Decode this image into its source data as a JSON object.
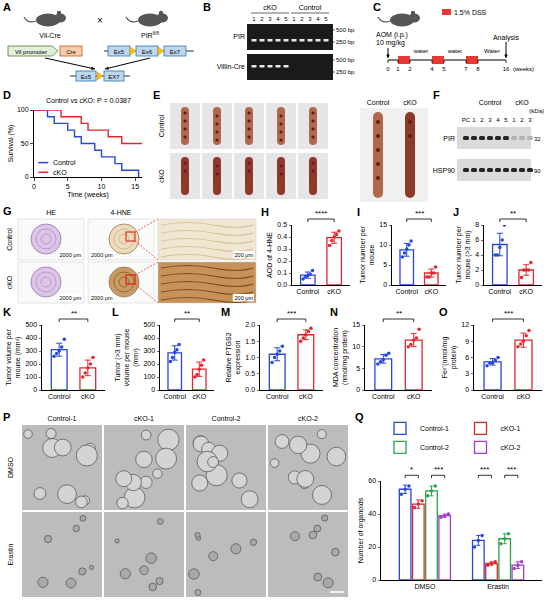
{
  "panels": {
    "A": {
      "label": "A",
      "mouse_left": "Vil-Cre",
      "mouse_right": "PIR",
      "mouse_right_sup": "fl/fl",
      "cross": "×",
      "promoter": "Vil promoter",
      "gene": "Cre",
      "exons": [
        "Ex5",
        "Ex6",
        "Ex7"
      ],
      "result_exons": [
        "Ex5",
        "EX7"
      ]
    },
    "B": {
      "label": "B",
      "groups": [
        {
          "name": "cKO",
          "lanes": [
            "1",
            "2",
            "3",
            "4",
            "5"
          ]
        },
        {
          "name": "Control",
          "lanes": [
            "1",
            "2",
            "3",
            "4",
            "5"
          ]
        }
      ],
      "rows": [
        "PIR",
        "Villin-Cre"
      ],
      "sizes": [
        "500 bp",
        "250 bp"
      ]
    },
    "C": {
      "label": "C",
      "injection": "AOM (i.p.)",
      "dose": "10 mg/kg",
      "treatment": "1.5% DSS",
      "weeks": [
        "0",
        "1",
        "2",
        "4",
        "5",
        "7",
        "8",
        "16"
      ],
      "unit": "(weeks)",
      "phases": [
        "water",
        "water",
        "Water"
      ],
      "end": "Analysis"
    },
    "E": {
      "label": "E",
      "rows": [
        "Control",
        "cKO"
      ],
      "right": [
        "Control",
        "cKO"
      ]
    },
    "F": {
      "label": "F",
      "control_lane": "PC",
      "groups": [
        {
          "name": "Control",
          "lanes": [
            "1",
            "2",
            "3",
            "4",
            "5"
          ]
        },
        {
          "name": "cKO",
          "lanes": [
            "1",
            "2",
            "3"
          ]
        }
      ],
      "rows": [
        "PIR",
        "HSP90"
      ],
      "unit": "(kDa)",
      "sizes": [
        "32",
        "90"
      ]
    },
    "G": {
      "label": "G",
      "columns": [
        "HE",
        "4-HNE"
      ],
      "rows": [
        "Control",
        "cKO"
      ],
      "scale_bars": [
        "2000 μm",
        "2000 μm",
        "200 μm"
      ]
    },
    "P": {
      "label": "P",
      "columns": [
        "Control-1",
        "cKO-1",
        "Control-2",
        "cKO-2"
      ],
      "rows": [
        "DMSO",
        "Erastin"
      ]
    }
  },
  "chart_data": [
    {
      "label": "D",
      "type": "line",
      "line_style": "step",
      "xlabel": "Time (weeks)",
      "ylabel": "Survival (%)",
      "annotation": "Control vs cKO: P = 0.0387",
      "xlim": [
        0,
        16
      ],
      "xticks": [
        0,
        5,
        10,
        15
      ],
      "ylim": [
        0,
        100
      ],
      "yticks": [
        0,
        50,
        100
      ],
      "legend": "bottom left",
      "series": [
        {
          "name": "Control",
          "color": "#2747d9",
          "x": [
            0,
            2,
            3,
            5,
            6,
            7,
            9,
            10,
            12,
            13,
            15.5
          ],
          "values": [
            100,
            90,
            80,
            70,
            60,
            50,
            40,
            30,
            20,
            10,
            0
          ]
        },
        {
          "name": "cKO",
          "color": "#e3262d",
          "x": [
            0,
            4,
            7,
            8,
            11,
            13,
            16
          ],
          "values": [
            100,
            90,
            80,
            70,
            60,
            50,
            50
          ]
        }
      ]
    },
    {
      "label": "H",
      "type": "bar",
      "ylabel": "AOD of 4-HNE",
      "categories": [
        "Control",
        "cKO"
      ],
      "values": [
        0.082,
        0.394
      ],
      "errors": [
        0.026,
        0.046
      ],
      "points": [
        [
          0.05,
          0.07,
          0.08,
          0.09,
          0.12
        ],
        [
          0.33,
          0.37,
          0.4,
          0.42,
          0.45
        ]
      ],
      "colors": [
        "#2747d9",
        "#e3262d"
      ],
      "marker": "circle",
      "ylim": [
        0,
        0.5
      ],
      "yticks": [
        {
          "value": 0,
          "label": "0.0"
        },
        0.1,
        0.2,
        0.3,
        0.4,
        0.5
      ],
      "significance": "****"
    },
    {
      "label": "I",
      "type": "bar",
      "ylabel": "Tumor number per mouse",
      "categories": [
        "Control",
        "cKO"
      ],
      "values": [
        8.8,
        3.0
      ],
      "errors": [
        1.6,
        1.0
      ],
      "points": [
        [
          7,
          8,
          9,
          10,
          11
        ],
        [
          2,
          2,
          3,
          3,
          4.5
        ]
      ],
      "colors": [
        "#2747d9",
        "#e3262d"
      ],
      "marker": "circle",
      "ylim": [
        0,
        15
      ],
      "yticks": [
        0,
        5,
        10,
        15
      ],
      "significance": "***"
    },
    {
      "label": "J",
      "type": "bar",
      "ylabel": "Tumor number per mouse (>3 mm)",
      "categories": [
        "Control",
        "cKO"
      ],
      "values": [
        5.4,
        2.0
      ],
      "errors": [
        1.5,
        0.7
      ],
      "points": [
        [
          4,
          4,
          5,
          6,
          8
        ],
        [
          1,
          2,
          2,
          2,
          3
        ]
      ],
      "colors": [
        "#2747d9",
        "#e3262d"
      ],
      "marker": "circle",
      "ylim": [
        0,
        8
      ],
      "yticks": [
        0,
        2,
        4,
        6,
        8
      ],
      "significance": "**"
    },
    {
      "label": "K",
      "type": "bar",
      "ylabel": "Tumor volume per mouse (mm³)",
      "categories": [
        "Control",
        "cKO"
      ],
      "values": [
        310,
        170
      ],
      "errors": [
        50,
        60
      ],
      "points": [
        [
          260,
          280,
          300,
          330,
          390
        ],
        [
          100,
          130,
          170,
          200,
          250
        ]
      ],
      "colors": [
        "#2747d9",
        "#e3262d"
      ],
      "marker": "circle",
      "ylim": [
        0,
        500
      ],
      "yticks": [
        0,
        100,
        200,
        300,
        400,
        500
      ],
      "significance": "**"
    },
    {
      "label": "L",
      "type": "bar",
      "ylabel": "Tumor (>3 mm) volume per mouse (mm³)",
      "categories": [
        "Control",
        "cKO"
      ],
      "values": [
        285,
        160
      ],
      "errors": [
        55,
        55
      ],
      "points": [
        [
          220,
          250,
          290,
          310,
          350
        ],
        [
          100,
          120,
          160,
          190,
          230
        ]
      ],
      "colors": [
        "#2747d9",
        "#e3262d"
      ],
      "marker": "circle",
      "ylim": [
        0,
        500
      ],
      "yticks": [
        0,
        100,
        200,
        300,
        400,
        500
      ],
      "significance": "**"
    },
    {
      "label": "M",
      "type": "bar",
      "ylabel": "Relative PTGS2 expression",
      "categories": [
        "Control",
        "cKO"
      ],
      "values": [
        1.1,
        1.7
      ],
      "errors": [
        0.2,
        0.15
      ],
      "points": [
        [
          0.85,
          1.0,
          1.1,
          1.2,
          1.35
        ],
        [
          1.5,
          1.6,
          1.7,
          1.8,
          1.9
        ]
      ],
      "colors": [
        "#2747d9",
        "#e3262d"
      ],
      "marker": "circle",
      "ylim": [
        0,
        2.0
      ],
      "yticks": [
        {
          "value": 0,
          "label": "0.0"
        },
        0.5,
        {
          "value": 1,
          "label": "1.0"
        },
        1.5,
        {
          "value": 2,
          "label": "2.0"
        }
      ],
      "significance": "***"
    },
    {
      "label": "N",
      "type": "bar",
      "ylabel": "MDA concentration (nmol/mg protein)",
      "categories": [
        "Control",
        "cKO"
      ],
      "values": [
        7.2,
        11.5
      ],
      "errors": [
        1.0,
        1.5
      ],
      "points": [
        [
          6,
          6.5,
          7,
          8,
          8.5
        ],
        [
          10,
          10.5,
          11.5,
          12,
          14
        ]
      ],
      "colors": [
        "#2747d9",
        "#e3262d"
      ],
      "marker": "circle",
      "ylim": [
        0,
        15
      ],
      "yticks": [
        0,
        5,
        10,
        15
      ],
      "significance": "**"
    },
    {
      "label": "O",
      "type": "bar",
      "ylabel": "Fe²⁺(nmol/mg protein)",
      "categories": [
        "Control",
        "cKO"
      ],
      "values": [
        5.2,
        9.2
      ],
      "errors": [
        0.6,
        1.3
      ],
      "points": [
        [
          4.5,
          5,
          5,
          5.5,
          6
        ],
        [
          8,
          8.5,
          9,
          10,
          11
        ]
      ],
      "colors": [
        "#2747d9",
        "#e3262d"
      ],
      "marker": "circle",
      "ylim": [
        0,
        12
      ],
      "yticks": [
        0,
        3,
        6,
        9,
        12
      ],
      "significance": "***"
    },
    {
      "label": "Q",
      "type": "bar",
      "ylabel": "Number of organoids",
      "categories": [
        "DMSO",
        "Erastin"
      ],
      "marker": "circle",
      "legend": "top",
      "ylim": [
        0,
        60
      ],
      "yticks": [
        0,
        20,
        40,
        60
      ],
      "series": [
        {
          "name": "Control-1",
          "color": "#2747d9",
          "values": [
            55,
            24
          ],
          "errors": [
            2.5,
            3.0
          ],
          "points": [
            [
              52,
              55,
              57
            ],
            [
              20,
              24,
              27
            ]
          ]
        },
        {
          "name": "cKO-1",
          "color": "#e3262d",
          "values": [
            46,
            10
          ],
          "errors": [
            2.5,
            1.0
          ],
          "points": [
            [
              44,
              46,
              48
            ],
            [
              9,
              10,
              11
            ]
          ]
        },
        {
          "name": "Control-2",
          "color": "#2ca444",
          "values": [
            54,
            25
          ],
          "errors": [
            3.0,
            3.0
          ],
          "points": [
            [
              51,
              54,
              57
            ],
            [
              22,
              25,
              28
            ]
          ]
        },
        {
          "name": "cKO-2",
          "color": "#a23bc8",
          "values": [
            39,
            9
          ],
          "errors": [
            1.0,
            2.0
          ],
          "points": [
            [
              38,
              39,
              40
            ],
            [
              7,
              9,
              11
            ]
          ]
        }
      ],
      "significance": [
        {
          "category": "DMSO",
          "between": [
            "Control-1",
            "cKO-1"
          ],
          "text": "*"
        },
        {
          "category": "DMSO",
          "between": [
            "Control-2",
            "cKO-2"
          ],
          "text": "***"
        },
        {
          "category": "Erastin",
          "between": [
            "Control-1",
            "cKO-1"
          ],
          "text": "***"
        },
        {
          "category": "Erastin",
          "between": [
            "Control-2",
            "cKO-2"
          ],
          "text": "***"
        }
      ]
    }
  ]
}
